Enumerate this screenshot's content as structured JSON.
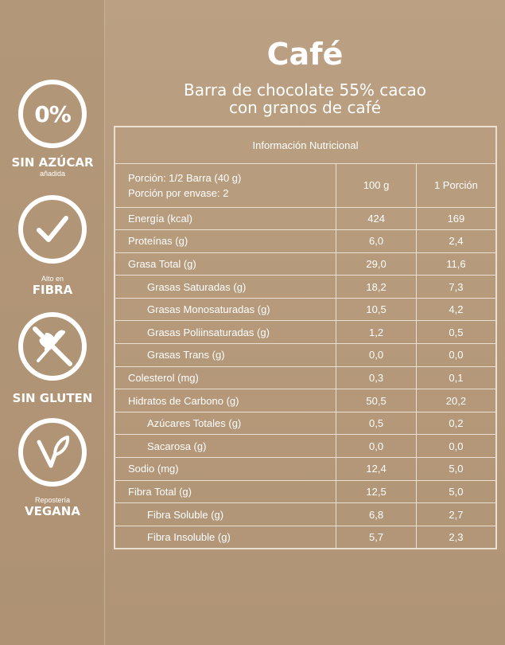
{
  "title": "Café",
  "subtitle_line1": "Barra de chocolate 55% cacao",
  "subtitle_line2": "con granos de café",
  "badges": {
    "sugar": {
      "icon": "percent-circle-icon",
      "percent": "0%",
      "main": "SIN AZÚCAR",
      "small": "añadida"
    },
    "fiber": {
      "icon": "checkmark-circle-icon",
      "small": "Alto en",
      "main": "FIBRA"
    },
    "gluten": {
      "icon": "no-wheat-icon",
      "main": "SIN GLUTEN"
    },
    "vegan": {
      "icon": "vegan-leaf-icon",
      "small": "Repostería",
      "main": "VEGANA"
    }
  },
  "table": {
    "header": "Información Nutricional",
    "portion_line1": "Porción: 1/2 Barra (40 g)",
    "portion_line2": "Porción por envase: 2",
    "col_100g": "100 g",
    "col_portion": "1 Porción",
    "rows": [
      {
        "label": "Energía (kcal)",
        "v100": "424",
        "vportion": "169",
        "indent": false
      },
      {
        "label": "Proteínas (g)",
        "v100": "6,0",
        "vportion": "2,4",
        "indent": false
      },
      {
        "label": "Grasa Total (g)",
        "v100": "29,0",
        "vportion": "11,6",
        "indent": false
      },
      {
        "label": "Grasas Saturadas (g)",
        "v100": "18,2",
        "vportion": "7,3",
        "indent": true
      },
      {
        "label": "Grasas Monosaturadas (g)",
        "v100": "10,5",
        "vportion": "4,2",
        "indent": true
      },
      {
        "label": "Grasas Poliinsaturadas (g)",
        "v100": "1,2",
        "vportion": "0,5",
        "indent": true
      },
      {
        "label": "Grasas Trans (g)",
        "v100": "0,0",
        "vportion": "0,0",
        "indent": true
      },
      {
        "label": "Colesterol (mg)",
        "v100": "0,3",
        "vportion": "0,1",
        "indent": false
      },
      {
        "label": "Hidratos de Carbono (g)",
        "v100": "50,5",
        "vportion": "20,2",
        "indent": false
      },
      {
        "label": "Azúcares Totales (g)",
        "v100": "0,5",
        "vportion": "0,2",
        "indent": true
      },
      {
        "label": "Sacarosa (g)",
        "v100": "0,0",
        "vportion": "0,0",
        "indent": true
      },
      {
        "label": "Sodio (mg)",
        "v100": "12,4",
        "vportion": "5,0",
        "indent": false
      },
      {
        "label": "Fibra Total (g)",
        "v100": "12,5",
        "vportion": "5,0",
        "indent": false
      },
      {
        "label": "Fibra Soluble (g)",
        "v100": "6,8",
        "vportion": "2,7",
        "indent": true
      },
      {
        "label": "Fibra Insoluble (g)",
        "v100": "5,7",
        "vportion": "2,3",
        "indent": true
      }
    ]
  }
}
